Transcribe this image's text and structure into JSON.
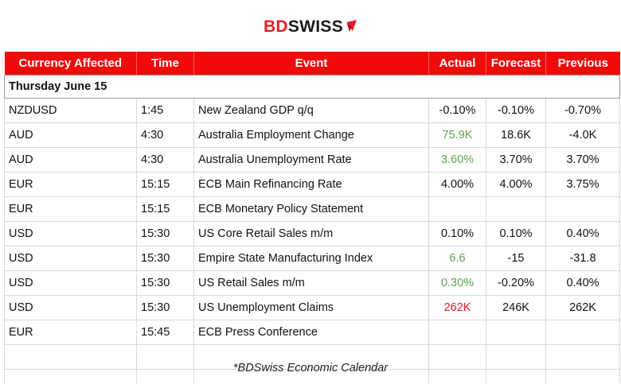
{
  "logo": {
    "bd": "BD",
    "swiss": "SWISS",
    "brand_color": "#e3202a"
  },
  "header": {
    "currency": "Currency Affected",
    "time": "Time",
    "event": "Event",
    "actual": "Actual",
    "forecast": "Forecast",
    "previous": "Previous"
  },
  "day_label": "Thursday June 15",
  "rows": [
    {
      "currency": "NZDUSD",
      "time": "1:45",
      "event": "New Zealand GDP q/q",
      "actual": "-0.10%",
      "actual_color": "black",
      "forecast": "-0.10%",
      "previous": "-0.70%"
    },
    {
      "currency": "AUD",
      "time": "4:30",
      "event": "Australia Employment Change",
      "actual": "75.9K",
      "actual_color": "green",
      "forecast": "18.6K",
      "previous": "-4.0K"
    },
    {
      "currency": "AUD",
      "time": "4:30",
      "event": "Australia Unemployment Rate",
      "actual": "3.60%",
      "actual_color": "green",
      "forecast": "3.70%",
      "previous": "3.70%"
    },
    {
      "currency": "EUR",
      "time": "15:15",
      "event": "ECB Main Refinancing Rate",
      "actual": "4.00%",
      "actual_color": "black",
      "forecast": "4.00%",
      "previous": "3.75%"
    },
    {
      "currency": "EUR",
      "time": "15:15",
      "event": "ECB Monetary Policy Statement",
      "actual": "",
      "actual_color": "black",
      "forecast": "",
      "previous": ""
    },
    {
      "currency": "USD",
      "time": "15:30",
      "event": "US Core Retail Sales m/m",
      "actual": "0.10%",
      "actual_color": "black",
      "forecast": "0.10%",
      "previous": "0.40%"
    },
    {
      "currency": "USD",
      "time": "15:30",
      "event": "Empire State Manufacturing Index",
      "actual": "6.6",
      "actual_color": "green",
      "forecast": "-15",
      "previous": "-31.8"
    },
    {
      "currency": "USD",
      "time": "15:30",
      "event": "US Retail Sales m/m",
      "actual": "0.30%",
      "actual_color": "green",
      "forecast": "-0.20%",
      "previous": "0.40%"
    },
    {
      "currency": "USD",
      "time": "15:30",
      "event": "US Unemployment Claims",
      "actual": "262K",
      "actual_color": "red",
      "forecast": "246K",
      "previous": "262K"
    },
    {
      "currency": "EUR",
      "time": "15:45",
      "event": "ECB Press Conference",
      "actual": "",
      "actual_color": "black",
      "forecast": "",
      "previous": ""
    }
  ],
  "footnote": "*BDSwiss Economic Calendar"
}
